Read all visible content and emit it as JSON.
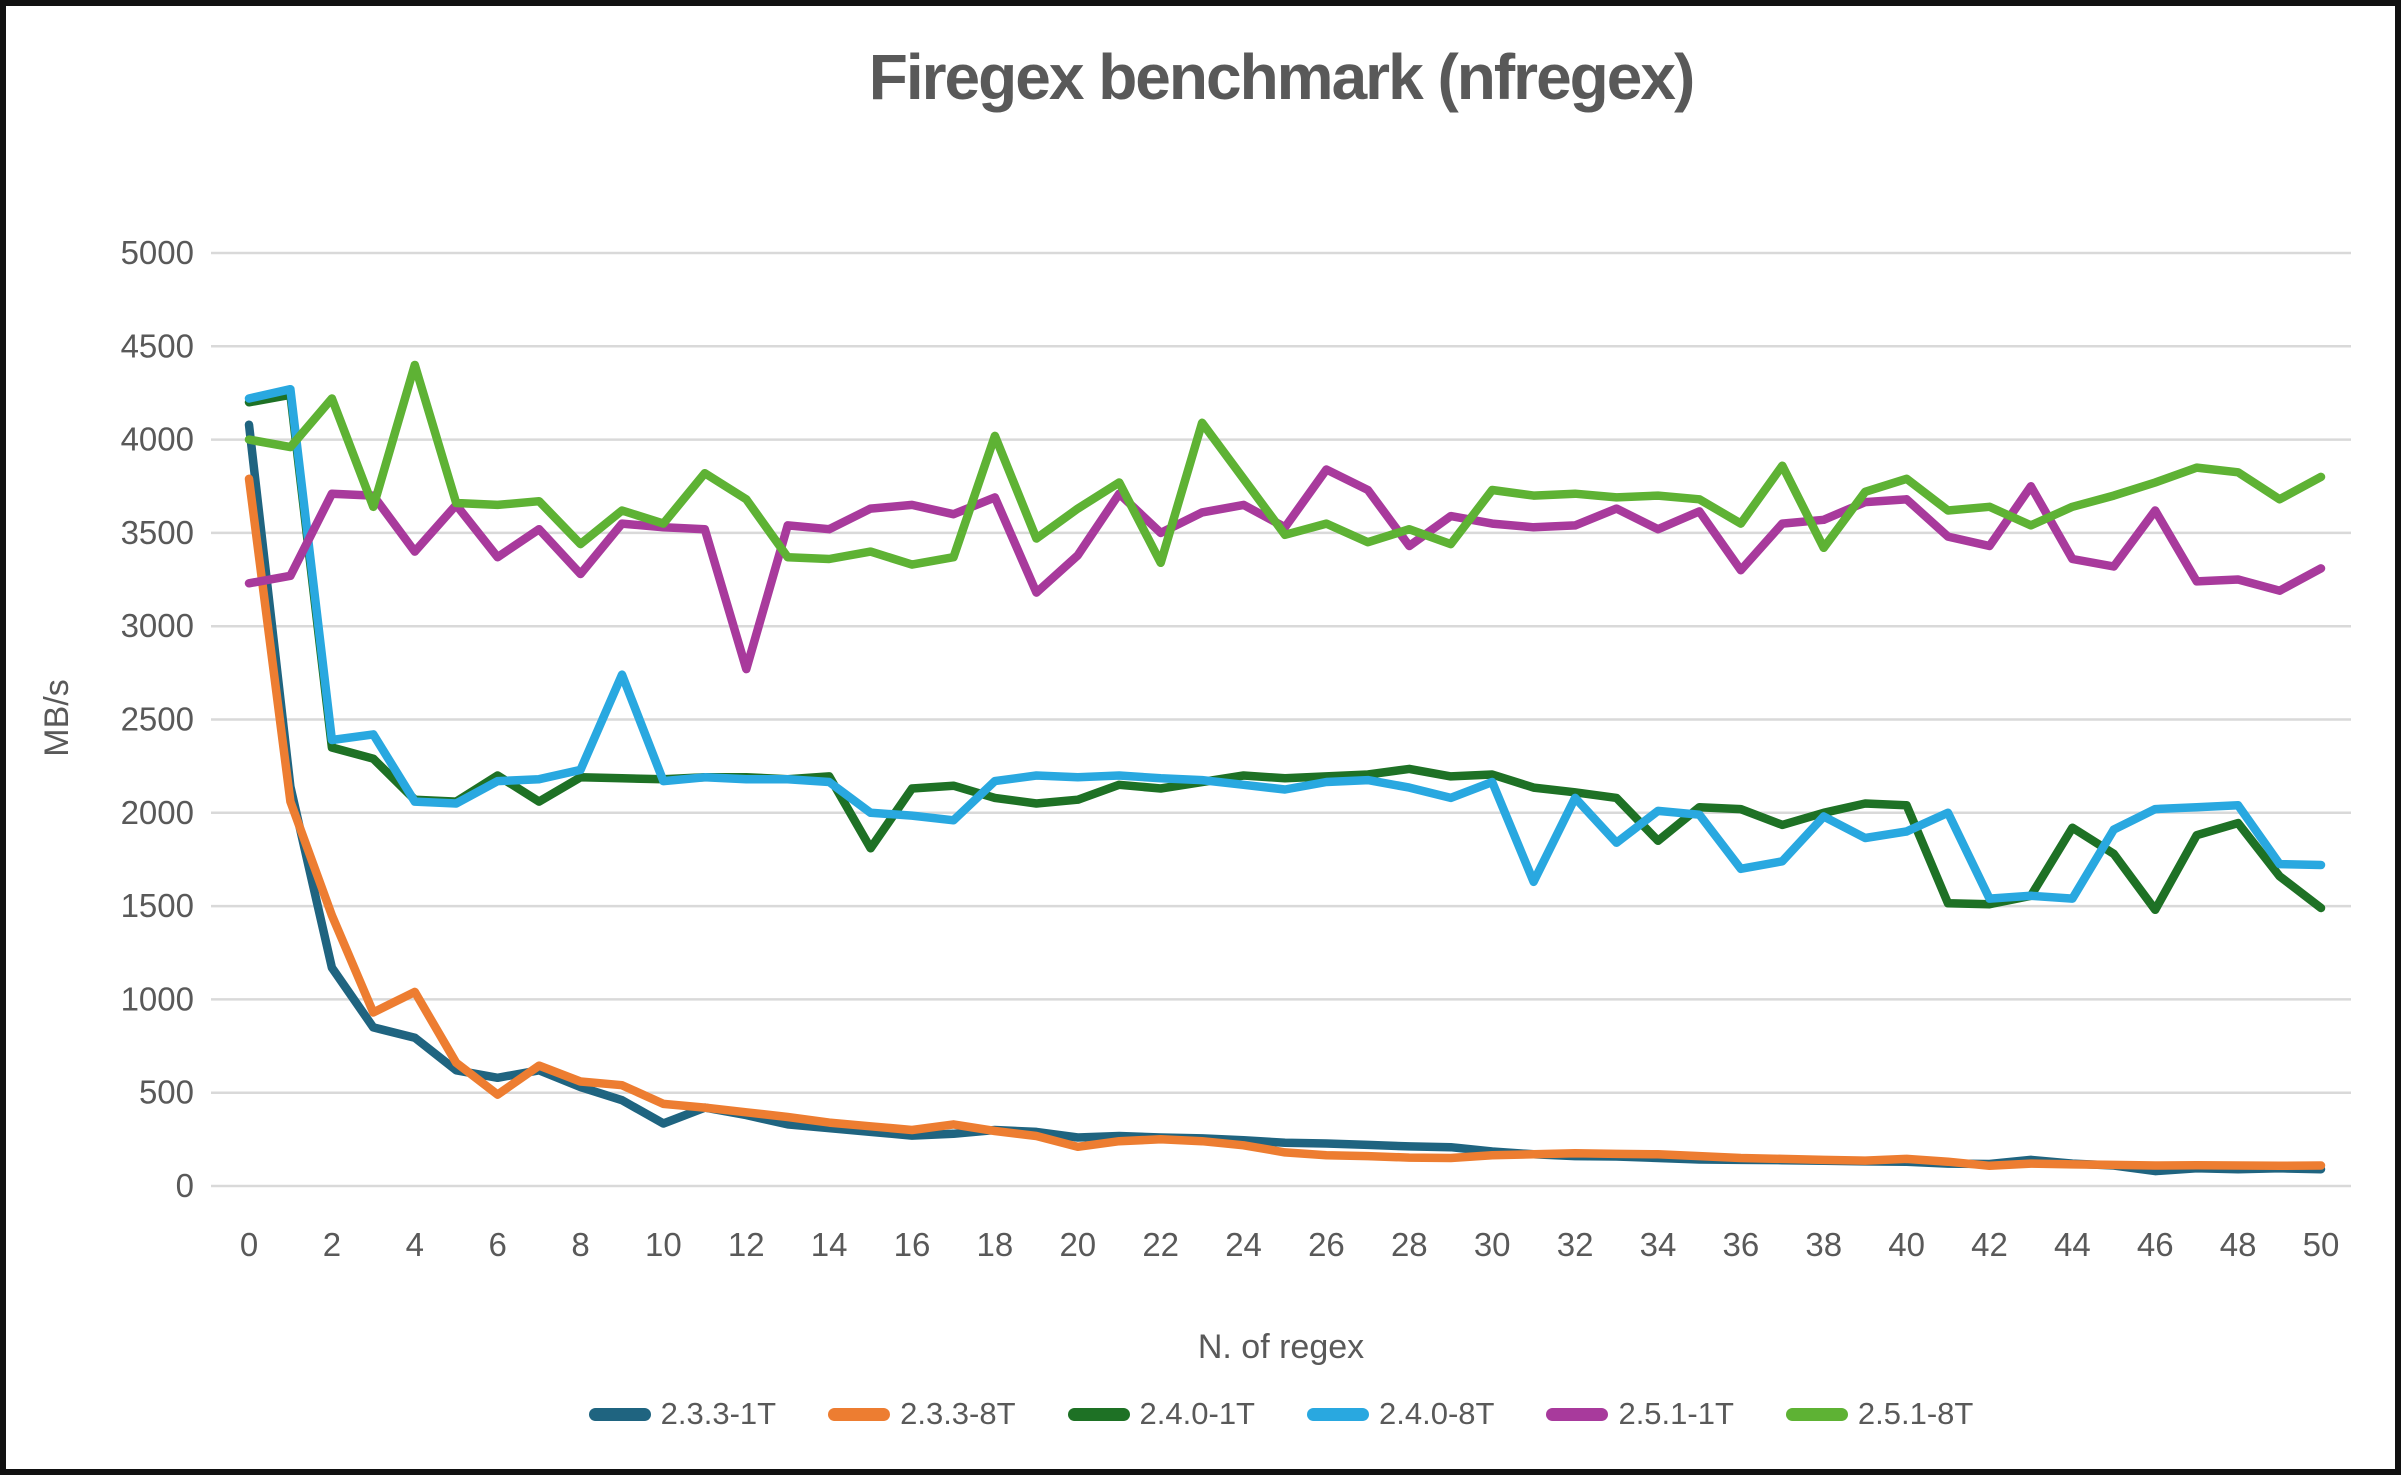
{
  "title": "Firegex benchmark (nfregex)",
  "chart_data": {
    "type": "line",
    "title": "Firegex benchmark (nfregex)",
    "xlabel": "N. of regex",
    "ylabel": "MB/s",
    "xlim": [
      0,
      50
    ],
    "ylim": [
      0,
      5000
    ],
    "grid": "horizontal-only",
    "gridline_color": "#D9D9D9",
    "text_color": "#595959",
    "legend_position": "bottom-center",
    "x_tick_labels": [
      0,
      2,
      4,
      6,
      8,
      10,
      12,
      14,
      16,
      18,
      20,
      22,
      24,
      26,
      28,
      30,
      32,
      34,
      36,
      38,
      40,
      42,
      44,
      46,
      48,
      50
    ],
    "y_tick_labels": [
      0,
      500,
      1000,
      1500,
      2000,
      2500,
      3000,
      3500,
      4000,
      4500,
      5000
    ],
    "x": [
      0,
      1,
      2,
      3,
      4,
      5,
      6,
      7,
      8,
      9,
      10,
      11,
      12,
      13,
      14,
      15,
      16,
      17,
      18,
      19,
      20,
      21,
      22,
      23,
      24,
      25,
      26,
      27,
      28,
      29,
      30,
      31,
      32,
      33,
      34,
      35,
      36,
      37,
      38,
      39,
      40,
      41,
      42,
      43,
      44,
      45,
      46,
      47,
      48,
      49,
      50
    ],
    "series": [
      {
        "name": "2.3.3-1T",
        "color": "#1F6480",
        "values": [
          4080,
          2140,
          1170,
          850,
          795,
          620,
          580,
          620,
          530,
          460,
          335,
          420,
          380,
          330,
          310,
          290,
          270,
          280,
          300,
          290,
          260,
          268,
          260,
          255,
          245,
          232,
          228,
          220,
          212,
          208,
          185,
          170,
          160,
          158,
          150,
          142,
          140,
          138,
          135,
          132,
          130,
          120,
          118,
          140,
          120,
          110,
          80,
          95,
          90,
          95,
          90
        ]
      },
      {
        "name": "2.3.3-8T",
        "color": "#ED7D31",
        "values": [
          3790,
          2060,
          1450,
          930,
          1040,
          660,
          490,
          645,
          560,
          540,
          440,
          420,
          395,
          370,
          340,
          320,
          300,
          330,
          295,
          268,
          210,
          240,
          250,
          240,
          218,
          180,
          165,
          160,
          152,
          150,
          165,
          170,
          175,
          172,
          170,
          160,
          150,
          145,
          140,
          136,
          145,
          130,
          108,
          120,
          116,
          113,
          110,
          111,
          110,
          108,
          110
        ]
      },
      {
        "name": "2.4.0-1T",
        "color": "#1E7125",
        "values": [
          4200,
          4240,
          2350,
          2290,
          2070,
          2060,
          2200,
          2060,
          2190,
          2185,
          2180,
          2190,
          2190,
          2180,
          2195,
          1810,
          2130,
          2145,
          2080,
          2050,
          2070,
          2150,
          2130,
          2165,
          2200,
          2185,
          2195,
          2205,
          2235,
          2195,
          2205,
          2135,
          2110,
          2080,
          1850,
          2030,
          2020,
          1935,
          2000,
          2050,
          2040,
          1515,
          1510,
          1555,
          1920,
          1780,
          1480,
          1880,
          1945,
          1660,
          1490
        ]
      },
      {
        "name": "2.4.0-8T",
        "color": "#29A8E0",
        "values": [
          4220,
          4270,
          2390,
          2420,
          2060,
          2050,
          2170,
          2180,
          2230,
          2740,
          2170,
          2190,
          2180,
          2180,
          2165,
          2000,
          1985,
          1960,
          2170,
          2200,
          2190,
          2200,
          2185,
          2175,
          2150,
          2125,
          2165,
          2175,
          2135,
          2080,
          2165,
          1630,
          2080,
          1840,
          2010,
          1990,
          1700,
          1740,
          1980,
          1865,
          1900,
          2000,
          1540,
          1555,
          1540,
          1910,
          2020,
          2030,
          2040,
          1725,
          1720
        ]
      },
      {
        "name": "2.5.1-1T",
        "color": "#A83A9C",
        "values": [
          3230,
          3270,
          3710,
          3700,
          3400,
          3650,
          3370,
          3520,
          3280,
          3550,
          3530,
          3520,
          2770,
          3540,
          3520,
          3630,
          3650,
          3600,
          3690,
          3180,
          3380,
          3710,
          3500,
          3610,
          3650,
          3530,
          3840,
          3730,
          3430,
          3590,
          3550,
          3530,
          3540,
          3630,
          3520,
          3615,
          3300,
          3550,
          3570,
          3665,
          3680,
          3480,
          3430,
          3750,
          3360,
          3320,
          3620,
          3240,
          3250,
          3190,
          3310
        ]
      },
      {
        "name": "2.5.1-8T",
        "color": "#5EB234",
        "values": [
          4000,
          3960,
          4220,
          3640,
          4400,
          3660,
          3650,
          3670,
          3440,
          3620,
          3550,
          3820,
          3680,
          3370,
          3360,
          3400,
          3330,
          3370,
          4020,
          3470,
          3630,
          3770,
          3340,
          4090,
          3790,
          3490,
          3550,
          3450,
          3520,
          3440,
          3730,
          3700,
          3710,
          3690,
          3700,
          3680,
          3550,
          3860,
          3420,
          3720,
          3790,
          3620,
          3640,
          3540,
          3640,
          3700,
          3770,
          3850,
          3825,
          3680,
          3800
        ]
      }
    ]
  }
}
